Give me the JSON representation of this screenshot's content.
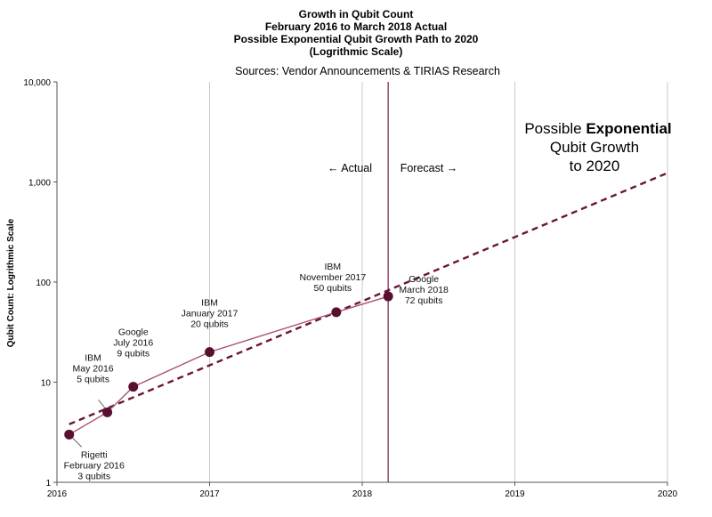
{
  "chart_data": {
    "type": "line",
    "title_lines": [
      "Growth in Qubit Count",
      "February 2016 to March 2018 Actual",
      "Possible Exponential Qubit Growth Path to 2020",
      "(Logrithmic Scale)"
    ],
    "subtitle": "Sources: Vendor Announcements & TIRIAS Research",
    "ylabel": "Qubit Count: Logrithmic Scale",
    "xlabel": "",
    "y_scale": "log",
    "ylim": [
      1,
      10000
    ],
    "xlim": [
      2016,
      2020
    ],
    "y_ticks": [
      1,
      10,
      100,
      1000,
      10000
    ],
    "y_tick_labels": [
      "1",
      "10",
      "100",
      "1,000",
      "10,000"
    ],
    "x_ticks": [
      2016,
      2017,
      2018,
      2019,
      2020
    ],
    "x_tick_labels": [
      "2016",
      "2017",
      "2018",
      "2019",
      "2020"
    ],
    "grid": "vertical",
    "series": [
      {
        "name": "Actual",
        "style": "solid",
        "color": "#a8507a",
        "marker_color": "#5a0f30",
        "points": [
          {
            "x": 2016.08,
            "y": 3,
            "lines": [
              "Rigetti",
              "February 2016",
              "3 qubits"
            ]
          },
          {
            "x": 2016.33,
            "y": 5,
            "lines": [
              "IBM",
              "May 2016",
              "5 qubits"
            ]
          },
          {
            "x": 2016.5,
            "y": 9,
            "lines": [
              "Google",
              "July 2016",
              "9 qubits"
            ]
          },
          {
            "x": 2017.0,
            "y": 20,
            "lines": [
              "IBM",
              "January 2017",
              "20 qubits"
            ]
          },
          {
            "x": 2017.83,
            "y": 50,
            "lines": [
              "IBM",
              "November 2017",
              "50 qubits"
            ]
          },
          {
            "x": 2018.17,
            "y": 72,
            "lines": [
              "Google",
              "March 2018",
              "72 qubits"
            ]
          }
        ]
      },
      {
        "name": "Possible Exponential Growth",
        "style": "dashed",
        "color": "#6b1535",
        "x": [
          2016.08,
          2020.0
        ],
        "y": [
          3.8,
          1230
        ]
      }
    ],
    "divider": {
      "x": 2018.17,
      "color": "#8b2a5a"
    },
    "labels": {
      "actual": "← Actual",
      "forecast": "Forecast →",
      "growth_line1_pre": "Possible ",
      "growth_line1_bold": "Exponential",
      "growth_line2": "Qubit Growth",
      "growth_line3": "to 2020"
    }
  }
}
